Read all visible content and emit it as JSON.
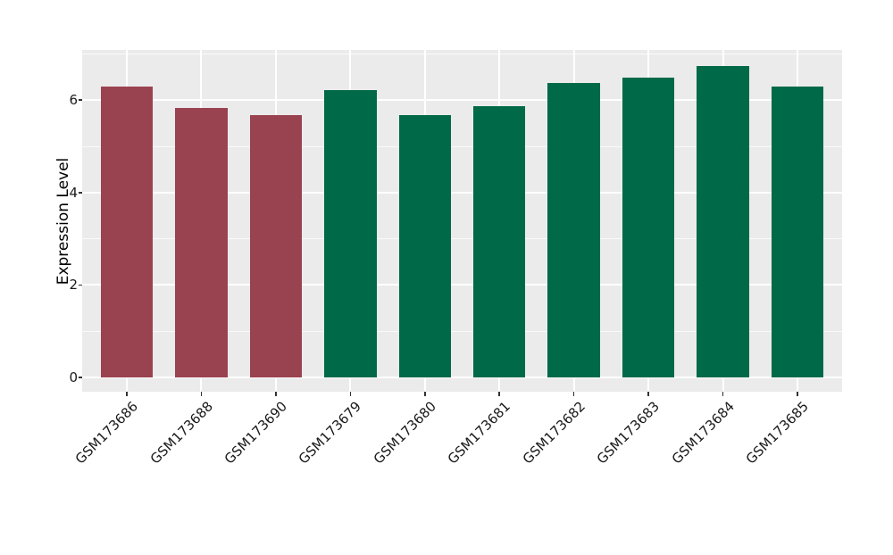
{
  "chart_data": {
    "type": "bar",
    "title": "",
    "xlabel": "",
    "ylabel": "Expression Level",
    "categories": [
      "GSM173686",
      "GSM173688",
      "GSM173690",
      "GSM173679",
      "GSM173680",
      "GSM173681",
      "GSM173682",
      "GSM173683",
      "GSM173684",
      "GSM173685"
    ],
    "values": [
      6.29,
      5.83,
      5.67,
      6.22,
      5.68,
      5.87,
      6.38,
      6.49,
      6.74,
      6.3
    ],
    "bar_colors": [
      "#9A4350",
      "#9A4350",
      "#9A4350",
      "#006948",
      "#006948",
      "#006948",
      "#006948",
      "#006948",
      "#006948",
      "#006948"
    ],
    "yaxis": {
      "ticks": [
        0,
        2,
        4,
        6
      ],
      "tick_labels": [
        "0",
        "2",
        "4",
        "6"
      ],
      "minor_ticks": [
        1,
        3,
        5,
        7
      ],
      "ylim": [
        -0.34,
        7.06
      ]
    },
    "xaxis": {
      "tick_label_rotation_deg": 45
    },
    "grid": true,
    "legend": "none",
    "style": {
      "panel_background": "#EBEBEB",
      "grid_color": "#FFFFFF",
      "axis_text_color": "#1A1A1A",
      "axis_title_color": "#000000",
      "tick_mark_color": "#333333",
      "figure_background": "#FFFFFF",
      "bar_width_fraction": 0.7
    }
  }
}
